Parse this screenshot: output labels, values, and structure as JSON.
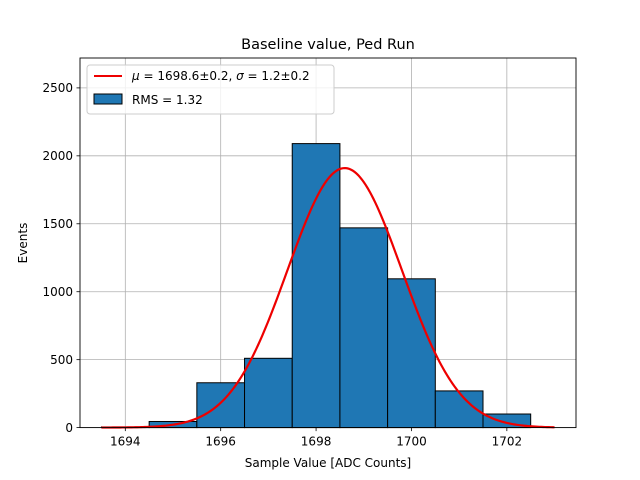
{
  "chart_data": {
    "type": "bar",
    "title": "Baseline value, Ped Run",
    "xlabel": "Sample Value [ADC Counts]",
    "ylabel": "Events",
    "xlim": [
      1693.05,
      1703.45
    ],
    "ylim": [
      0,
      2720
    ],
    "xticks": [
      1694,
      1696,
      1698,
      1700,
      1702
    ],
    "yticks": [
      0,
      500,
      1000,
      1500,
      2000,
      2500
    ],
    "grid": true,
    "legend_position": "top-left",
    "histogram": {
      "name": "RMS = 1.32",
      "color": "#1f77b4",
      "edgecolor": "#000000",
      "bins": [
        {
          "x0": 1693.5,
          "x1": 1694.5,
          "count": 5
        },
        {
          "x0": 1694.5,
          "x1": 1695.5,
          "count": 45
        },
        {
          "x0": 1695.5,
          "x1": 1696.5,
          "count": 330
        },
        {
          "x0": 1696.5,
          "x1": 1697.5,
          "count": 510
        },
        {
          "x0": 1697.5,
          "x1": 1698.5,
          "count": 2090
        },
        {
          "x0": 1698.5,
          "x1": 1699.5,
          "count": 1470
        },
        {
          "x0": 1699.5,
          "x1": 1700.5,
          "count": 1095
        },
        {
          "x0": 1700.5,
          "x1": 1701.5,
          "count": 270
        },
        {
          "x0": 1701.5,
          "x1": 1702.5,
          "count": 100
        }
      ]
    },
    "fit": {
      "name_prefix_mu": "μ",
      "name_mu_value": " = 1698.6±0.2, ",
      "name_prefix_sigma": "σ",
      "name_sigma_value": " = 1.2±0.2",
      "color": "#ee0000",
      "mu": 1698.6,
      "sigma": 1.2,
      "amplitude": 1910,
      "x_range": [
        1693.5,
        1703.0
      ]
    }
  }
}
